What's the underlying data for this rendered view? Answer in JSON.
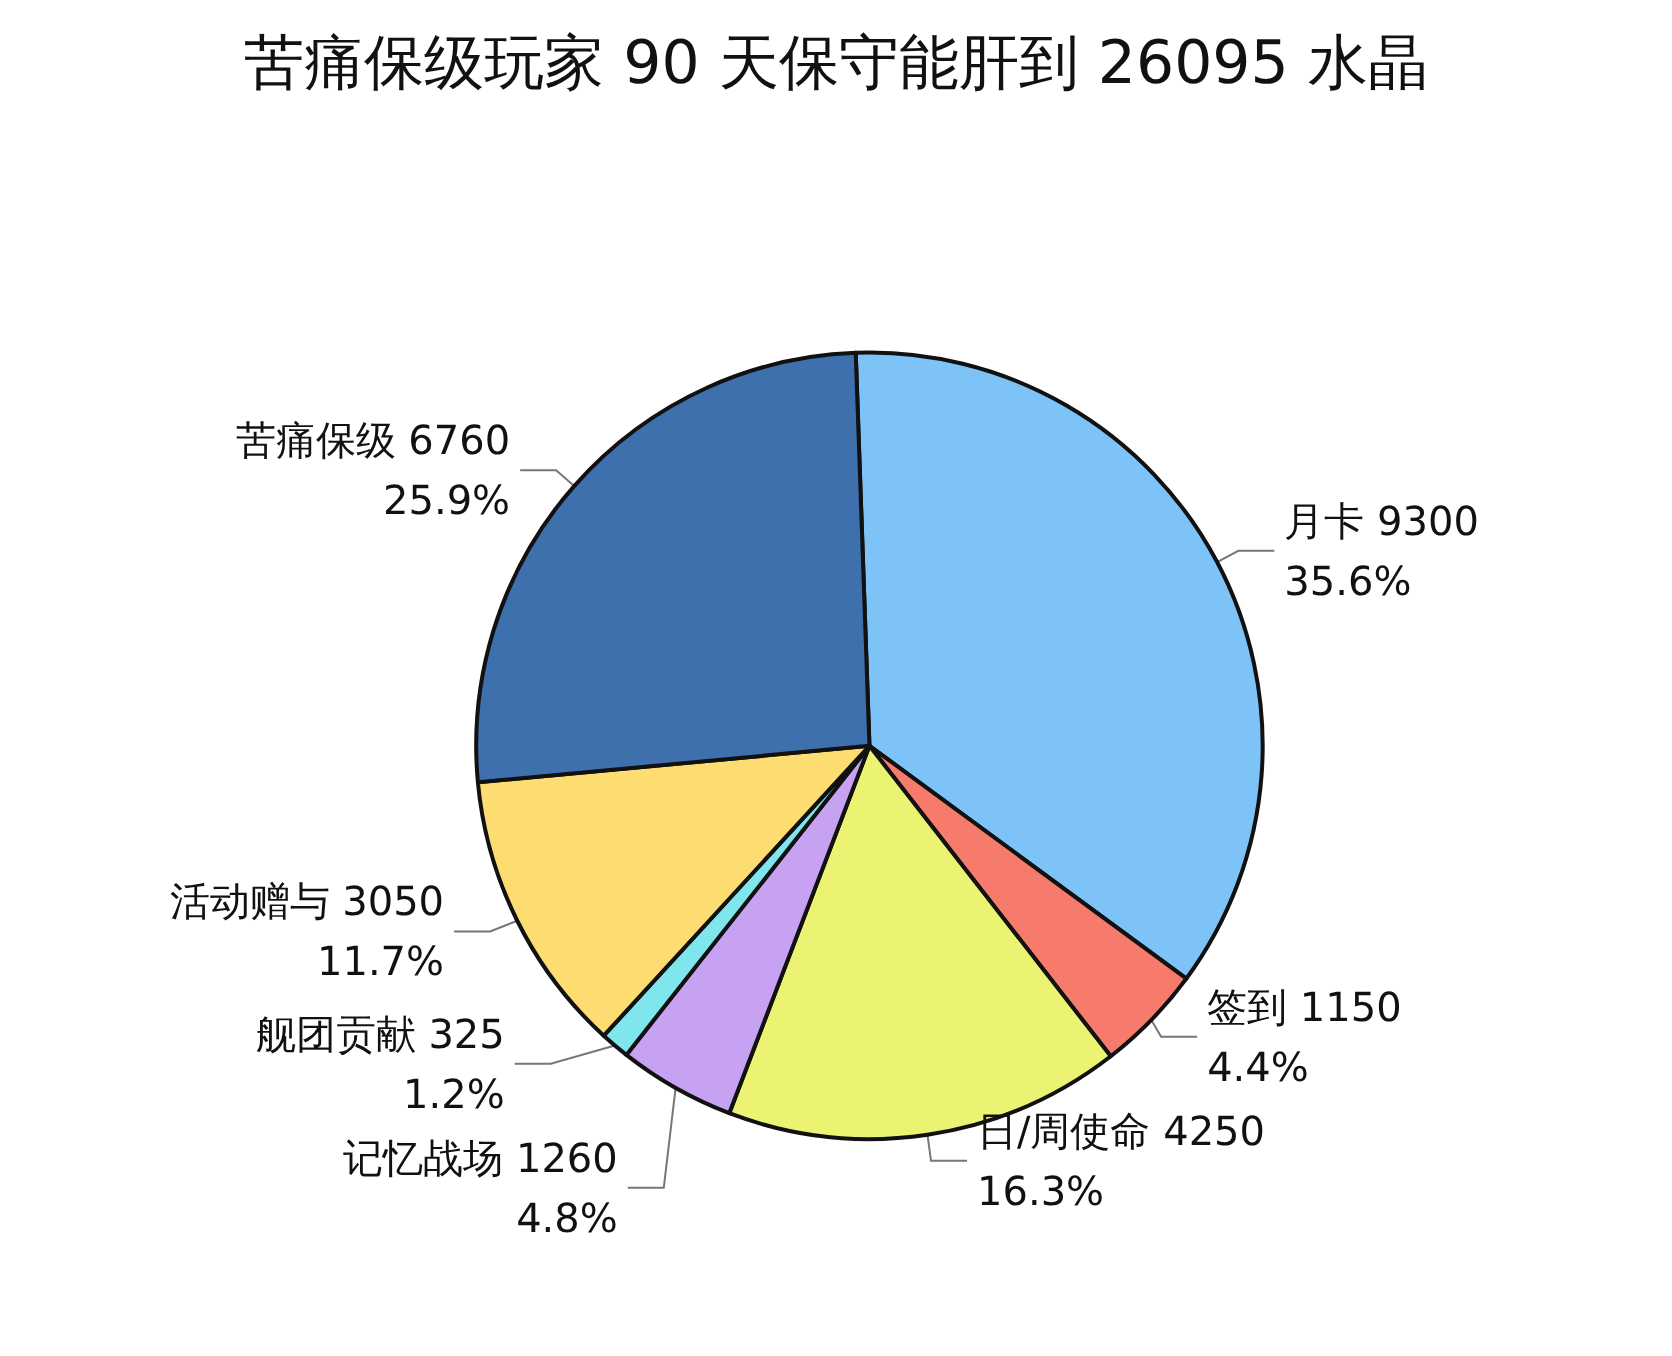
{
  "chart_data": {
    "type": "pie",
    "title": "苦痛保级玩家 90 天保守能肝到 26095 水晶",
    "categories": [
      "月卡 9300",
      "签到 1150",
      "日/周使命 4250",
      "记忆战场 1260",
      "舰团贡献 325",
      "活动赠与 3050",
      "苦痛保级 6760"
    ],
    "values": [
      35.6,
      4.4,
      16.3,
      4.8,
      1.2,
      11.7,
      25.9
    ],
    "colors": [
      "#7dc3f7",
      "#f67b6d",
      "#ecf271",
      "#c8a2f2",
      "#7fe6ee",
      "#fddd72",
      "#3f70ae"
    ],
    "value_labels": [
      "35.6%",
      "4.4%",
      "16.3%",
      "4.8%",
      "1.2%",
      "11.7%",
      "25.9%"
    ]
  }
}
